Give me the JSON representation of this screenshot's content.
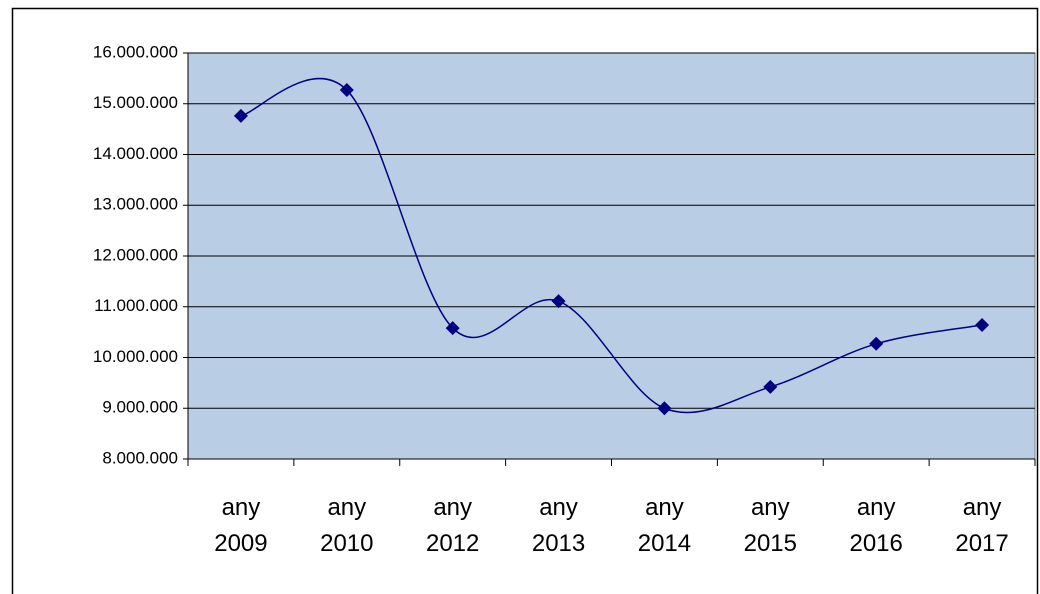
{
  "chart_data": {
    "type": "line",
    "categories": [
      "any 2009",
      "any 2010",
      "any 2012",
      "any 2013",
      "any 2014",
      "any 2015",
      "any 2016",
      "any 2017"
    ],
    "series": [
      {
        "color": "#000080",
        "values": [
          14760000,
          15270000,
          10580000,
          11110000,
          9000000,
          9420000,
          10270000,
          10640000
        ]
      }
    ],
    "ylim": [
      8000000,
      16000000
    ],
    "yticks": [
      {
        "value": 8000000,
        "label": "8.000.000"
      },
      {
        "value": 9000000,
        "label": "9.000.000"
      },
      {
        "value": 10000000,
        "label": "10.000.000"
      },
      {
        "value": 11000000,
        "label": "11.000.000"
      },
      {
        "value": 12000000,
        "label": "12.000.000"
      },
      {
        "value": 13000000,
        "label": "13.000.000"
      },
      {
        "value": 14000000,
        "label": "14.000.000"
      },
      {
        "value": 15000000,
        "label": "15.000.000"
      },
      {
        "value": 16000000,
        "label": "16.000.000"
      }
    ],
    "grid": true,
    "smooth": true,
    "marker": "diamond",
    "plot_background": "#b9cde5"
  }
}
